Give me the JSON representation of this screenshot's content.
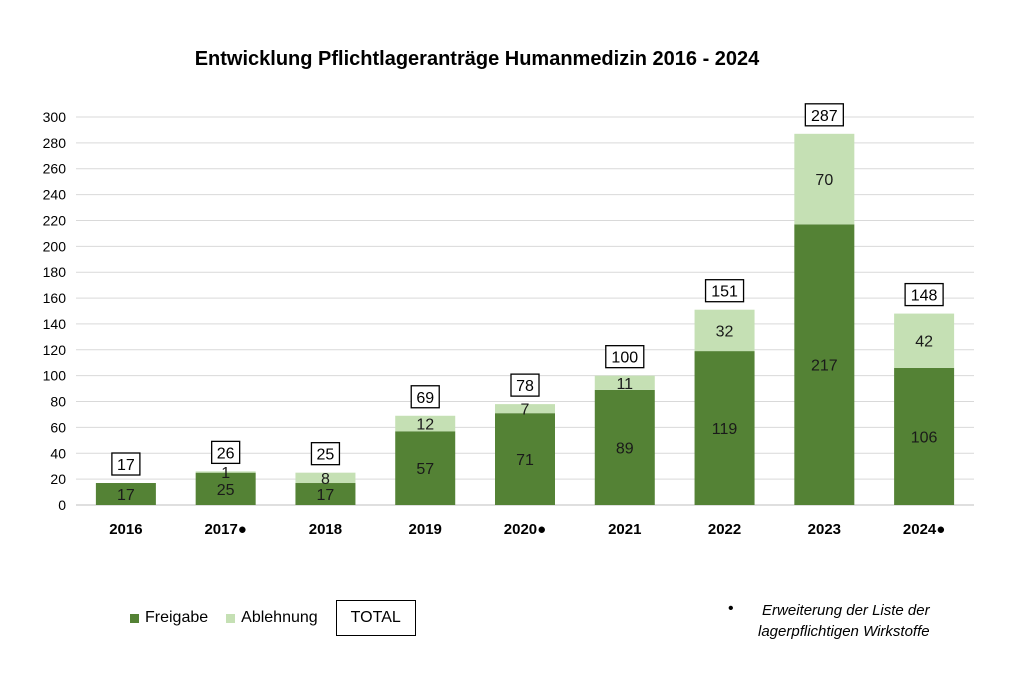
{
  "chart_data": {
    "type": "bar",
    "stacked": true,
    "title": "Entwicklung Pflichtlageranträge Humanmedizin 2016 - 2024",
    "categories": [
      "2016",
      "2017●",
      "2018",
      "2019",
      "2020●",
      "2021",
      "2022",
      "2023",
      "2024●"
    ],
    "series": [
      {
        "name": "Freigabe",
        "color": "#548235",
        "values": [
          17,
          25,
          17,
          57,
          71,
          89,
          119,
          217,
          106
        ]
      },
      {
        "name": "Ablehnung",
        "color": "#c5e0b4",
        "values": [
          0,
          1,
          8,
          12,
          7,
          11,
          32,
          70,
          42
        ]
      }
    ],
    "totals": [
      17,
      26,
      25,
      69,
      78,
      100,
      151,
      287,
      148
    ],
    "ylim": [
      0,
      300
    ],
    "yticks": [
      0,
      20,
      40,
      60,
      80,
      100,
      120,
      140,
      160,
      180,
      200,
      220,
      240,
      260,
      280,
      300
    ],
    "grid": true,
    "legend_position": "bottom-left"
  },
  "legend": {
    "freigabe": "Freigabe",
    "ablehnung": "Ablehnung",
    "total": "TOTAL"
  },
  "note": {
    "bullet": "•",
    "line1": "Erweiterung der Liste der",
    "line2": "lagerpflichtigen Wirkstoffe"
  }
}
